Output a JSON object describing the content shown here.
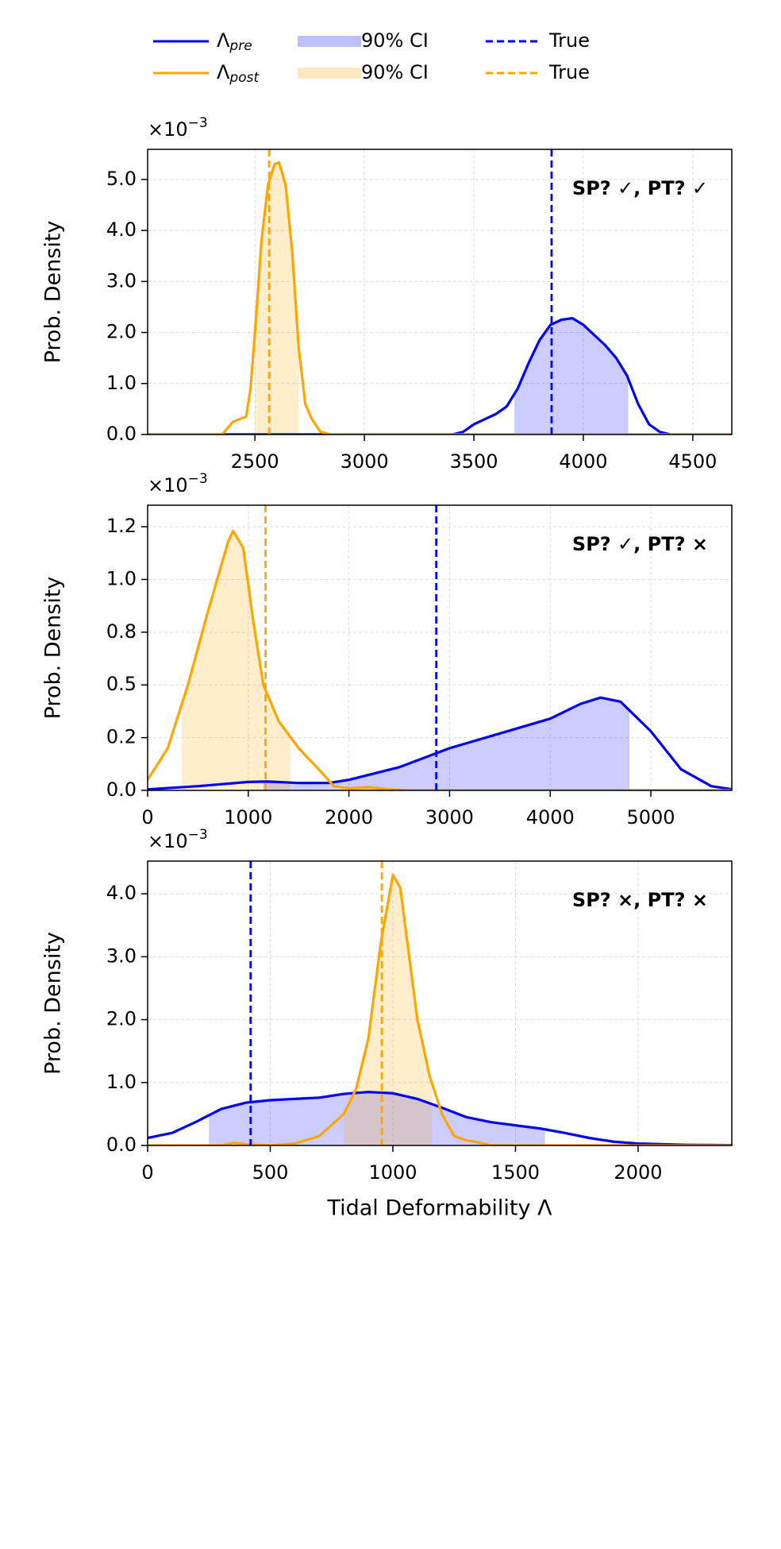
{
  "legend": [
    {
      "name": "Λ",
      "sub": "pre",
      "color": "#0000ff",
      "style": "line"
    },
    {
      "name": "Λ",
      "sub": "post",
      "color": "#ffa500",
      "style": "line"
    },
    {
      "name": "90% CI",
      "color": "#0000ff",
      "style": "fill"
    },
    {
      "name": "90% CI",
      "color": "#ffa500",
      "style": "fill"
    },
    {
      "name": "True",
      "color": "#0000ff",
      "style": "dash"
    },
    {
      "name": "True",
      "color": "#ffa500",
      "style": "dash"
    }
  ],
  "chart_data": [
    {
      "type": "line",
      "ylabel": "Prob. Density",
      "offset_text": {
        "base": "×10",
        "exp": "−3"
      },
      "annotation": "SP? ✓, PT? ✓",
      "xlim": [
        2010,
        4678
      ],
      "xticks": [
        2500,
        3000,
        3500,
        4000,
        4500
      ],
      "ylim": [
        0,
        5.59
      ],
      "yticks": [
        {
          "value": 0,
          "label": "0.0"
        },
        {
          "value": 1,
          "label": "1.0"
        },
        {
          "value": 2,
          "label": "2.0"
        },
        {
          "value": 3,
          "label": "3.0"
        },
        {
          "value": 4,
          "label": "4.0"
        },
        {
          "value": 5,
          "label": "5.0"
        }
      ],
      "grid": true,
      "series": [
        {
          "color": "#0000ff",
          "ci": [
            3685,
            4205
          ],
          "true": 3855,
          "x": [
            2010,
            3400,
            3450,
            3500,
            3550,
            3600,
            3650,
            3700,
            3750,
            3800,
            3850,
            3900,
            3950,
            4000,
            4050,
            4100,
            4150,
            4200,
            4250,
            4300,
            4350,
            4400,
            4678
          ],
          "values": [
            0,
            0,
            0.05,
            0.2,
            0.3,
            0.4,
            0.55,
            0.9,
            1.4,
            1.85,
            2.15,
            2.25,
            2.28,
            2.15,
            1.95,
            1.75,
            1.5,
            1.15,
            0.6,
            0.2,
            0.05,
            0,
            0
          ]
        },
        {
          "color": "#ffa500",
          "ci": [
            2500,
            2700
          ],
          "true": 2565,
          "x": [
            2010,
            2350,
            2400,
            2430,
            2460,
            2480,
            2500,
            2530,
            2560,
            2590,
            2610,
            2640,
            2670,
            2700,
            2730,
            2760,
            2800,
            2850,
            4678
          ],
          "values": [
            0,
            0,
            0.25,
            0.3,
            0.35,
            0.9,
            2.0,
            3.8,
            4.9,
            5.3,
            5.33,
            4.9,
            3.6,
            1.7,
            0.6,
            0.3,
            0.05,
            0,
            0
          ]
        }
      ]
    },
    {
      "type": "line",
      "ylabel": "Prob. Density",
      "offset_text": {
        "base": "×10",
        "exp": "−3"
      },
      "annotation": "SP? ✓, PT? ×",
      "xlim": [
        0,
        5804
      ],
      "xticks": [
        0,
        1000,
        2000,
        3000,
        4000,
        5000
      ],
      "ylim": [
        0,
        1.352
      ],
      "yticks": [
        {
          "value": 0,
          "label": "0.0"
        },
        {
          "value": 0.25,
          "label": "0.2"
        },
        {
          "value": 0.5,
          "label": "0.5"
        },
        {
          "value": 0.75,
          "label": "0.8"
        },
        {
          "value": 1,
          "label": "1.0"
        },
        {
          "value": 1.25,
          "label": "1.2"
        }
      ],
      "grid": true,
      "series": [
        {
          "color": "#0000ff",
          "ci": [
            1150,
            4787
          ],
          "true": 2868,
          "x": [
            0,
            500,
            1000,
            1200,
            1500,
            1800,
            2000,
            2500,
            3000,
            3500,
            4000,
            4300,
            4500,
            4700,
            5000,
            5300,
            5600,
            5804
          ],
          "values": [
            0.005,
            0.02,
            0.04,
            0.042,
            0.035,
            0.035,
            0.05,
            0.11,
            0.2,
            0.27,
            0.34,
            0.41,
            0.44,
            0.42,
            0.28,
            0.1,
            0.02,
            0.005
          ]
        },
        {
          "color": "#ffa500",
          "ci": [
            340,
            1420
          ],
          "true": 1172,
          "x": [
            0,
            200,
            400,
            600,
            800,
            850,
            950,
            1050,
            1150,
            1300,
            1500,
            1700,
            1850,
            2000,
            2200,
            2400,
            2600,
            5804
          ],
          "values": [
            0.05,
            0.2,
            0.5,
            0.85,
            1.18,
            1.23,
            1.15,
            0.8,
            0.5,
            0.33,
            0.2,
            0.1,
            0.02,
            0.01,
            0.015,
            0.005,
            0,
            0
          ]
        }
      ]
    },
    {
      "type": "line",
      "ylabel": "Prob. Density",
      "xlabel": "Tidal Deformability Λ",
      "offset_text": {
        "base": "×10",
        "exp": "−3"
      },
      "annotation": "SP? ×, PT? ×",
      "xlim": [
        0,
        2382
      ],
      "xticks": [
        0,
        500,
        1000,
        1500,
        2000
      ],
      "ylim": [
        0,
        4.52
      ],
      "yticks": [
        {
          "value": 0,
          "label": "0.0"
        },
        {
          "value": 1,
          "label": "1.0"
        },
        {
          "value": 2,
          "label": "2.0"
        },
        {
          "value": 3,
          "label": "3.0"
        },
        {
          "value": 4,
          "label": "4.0"
        }
      ],
      "grid": true,
      "series": [
        {
          "color": "#0000ff",
          "ci": [
            250,
            1620
          ],
          "true": 420,
          "x": [
            0,
            100,
            200,
            300,
            400,
            500,
            600,
            700,
            800,
            900,
            1000,
            1100,
            1200,
            1300,
            1400,
            1500,
            1600,
            1700,
            1800,
            1900,
            2000,
            2200,
            2382
          ],
          "values": [
            0.12,
            0.2,
            0.38,
            0.58,
            0.68,
            0.72,
            0.74,
            0.76,
            0.82,
            0.85,
            0.83,
            0.74,
            0.6,
            0.45,
            0.37,
            0.32,
            0.27,
            0.2,
            0.12,
            0.06,
            0.03,
            0.01,
            0.005
          ]
        },
        {
          "color": "#ffa500",
          "ci": [
            800,
            1160
          ],
          "true": 955,
          "x": [
            0,
            300,
            350,
            400,
            500,
            600,
            700,
            800,
            850,
            900,
            950,
            1000,
            1030,
            1060,
            1100,
            1150,
            1200,
            1250,
            1300,
            1350,
            1400,
            2382
          ],
          "values": [
            0,
            0,
            0.04,
            0.02,
            0,
            0.03,
            0.15,
            0.5,
            0.9,
            1.7,
            3.2,
            4.3,
            4.1,
            3.2,
            2.0,
            1.1,
            0.5,
            0.15,
            0.08,
            0.05,
            0,
            0
          ]
        }
      ]
    }
  ]
}
